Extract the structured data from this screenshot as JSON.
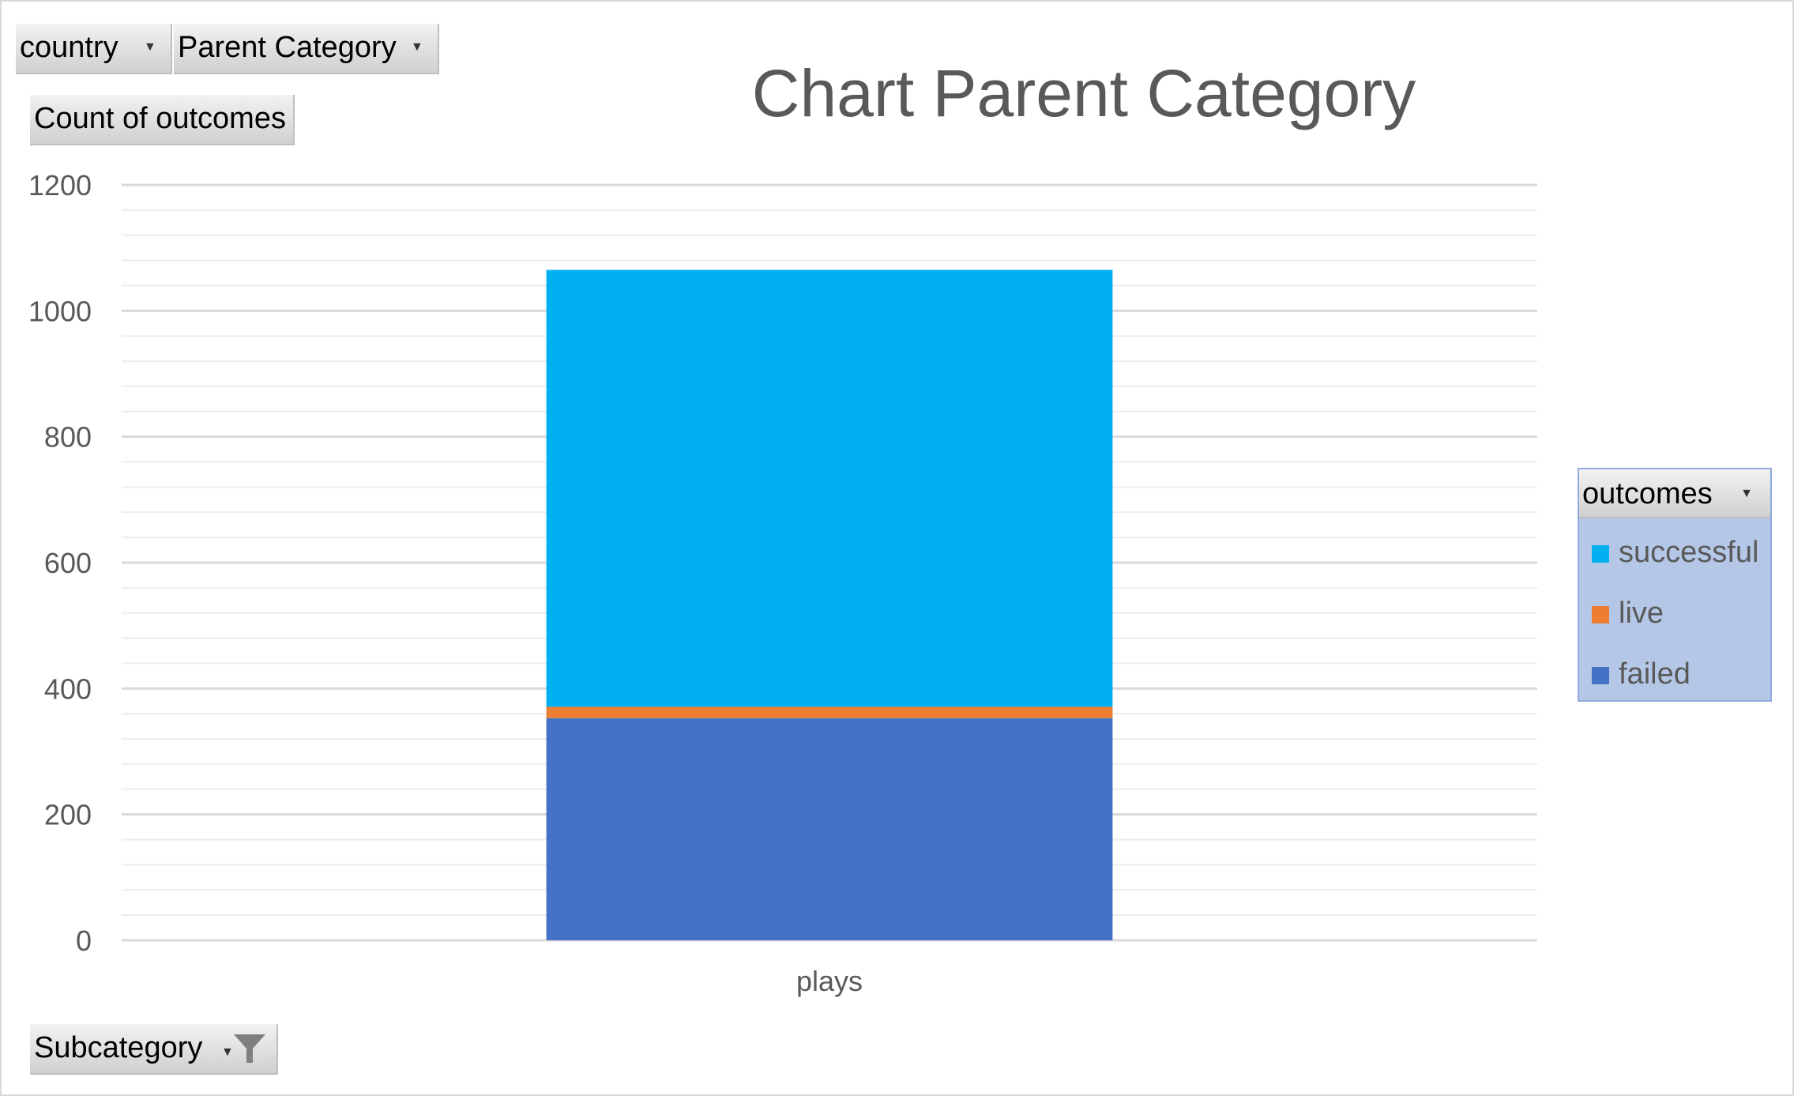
{
  "filters": {
    "country_label": "country",
    "parent_category_label": "Parent Category",
    "values_label": "Count of outcomes",
    "subcategory_label": "Subcategory",
    "legend_field_label": "outcomes"
  },
  "colors": {
    "successful": "#00b0f0",
    "live": "#ed7d31",
    "failed": "#4472c4",
    "gridline": "#d9d9d9",
    "text": "#595959"
  },
  "chart_data": {
    "type": "bar",
    "stacked": true,
    "title": "Chart Parent Category",
    "categories": [
      "plays"
    ],
    "series": [
      {
        "name": "failed",
        "values": [
          353
        ]
      },
      {
        "name": "live",
        "values": [
          18
        ]
      },
      {
        "name": "successful",
        "values": [
          694
        ]
      }
    ],
    "yticks": [
      "0",
      "200",
      "400",
      "600",
      "800",
      "1000",
      "1200"
    ],
    "ylim": [
      0,
      1200
    ],
    "grid": true,
    "legend_position": "right"
  },
  "legend": {
    "items": [
      {
        "label": "successful",
        "color_key": "successful"
      },
      {
        "label": "live",
        "color_key": "live"
      },
      {
        "label": "failed",
        "color_key": "failed"
      }
    ]
  }
}
